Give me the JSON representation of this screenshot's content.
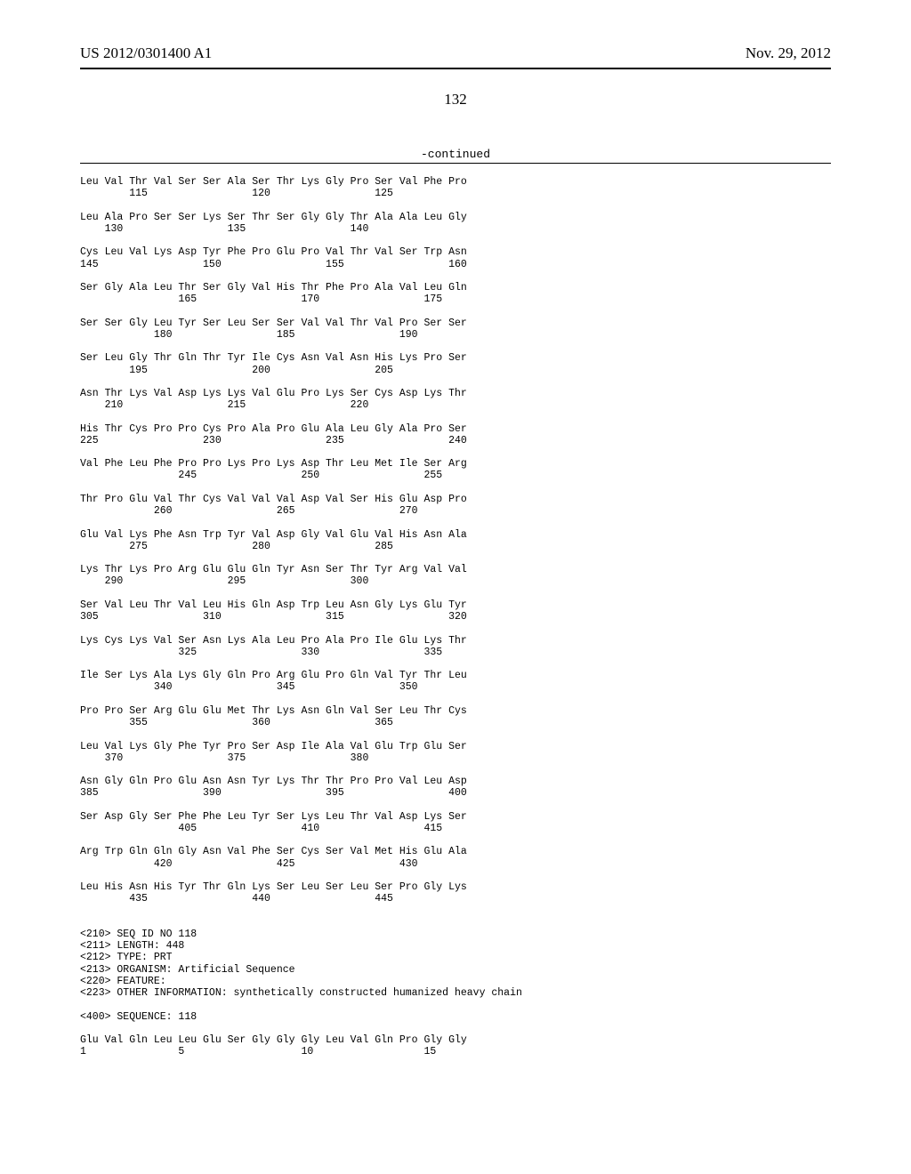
{
  "header": {
    "pub_number": "US 2012/0301400 A1",
    "pub_date": "Nov. 29, 2012"
  },
  "page_number": "132",
  "continued_label": "-continued",
  "sequence_rows": [
    {
      "line1": "Leu Val Thr Val Ser Ser Ala Ser Thr Lys Gly Pro Ser Val Phe Pro",
      "line2": "        115                 120                 125"
    },
    {
      "line1": "Leu Ala Pro Ser Ser Lys Ser Thr Ser Gly Gly Thr Ala Ala Leu Gly",
      "line2": "    130                 135                 140"
    },
    {
      "line1": "Cys Leu Val Lys Asp Tyr Phe Pro Glu Pro Val Thr Val Ser Trp Asn",
      "line2": "145                 150                 155                 160"
    },
    {
      "line1": "Ser Gly Ala Leu Thr Ser Gly Val His Thr Phe Pro Ala Val Leu Gln",
      "line2": "                165                 170                 175"
    },
    {
      "line1": "Ser Ser Gly Leu Tyr Ser Leu Ser Ser Val Val Thr Val Pro Ser Ser",
      "line2": "            180                 185                 190"
    },
    {
      "line1": "Ser Leu Gly Thr Gln Thr Tyr Ile Cys Asn Val Asn His Lys Pro Ser",
      "line2": "        195                 200                 205"
    },
    {
      "line1": "Asn Thr Lys Val Asp Lys Lys Val Glu Pro Lys Ser Cys Asp Lys Thr",
      "line2": "    210                 215                 220"
    },
    {
      "line1": "His Thr Cys Pro Pro Cys Pro Ala Pro Glu Ala Leu Gly Ala Pro Ser",
      "line2": "225                 230                 235                 240"
    },
    {
      "line1": "Val Phe Leu Phe Pro Pro Lys Pro Lys Asp Thr Leu Met Ile Ser Arg",
      "line2": "                245                 250                 255"
    },
    {
      "line1": "Thr Pro Glu Val Thr Cys Val Val Val Asp Val Ser His Glu Asp Pro",
      "line2": "            260                 265                 270"
    },
    {
      "line1": "Glu Val Lys Phe Asn Trp Tyr Val Asp Gly Val Glu Val His Asn Ala",
      "line2": "        275                 280                 285"
    },
    {
      "line1": "Lys Thr Lys Pro Arg Glu Glu Gln Tyr Asn Ser Thr Tyr Arg Val Val",
      "line2": "    290                 295                 300"
    },
    {
      "line1": "Ser Val Leu Thr Val Leu His Gln Asp Trp Leu Asn Gly Lys Glu Tyr",
      "line2": "305                 310                 315                 320"
    },
    {
      "line1": "Lys Cys Lys Val Ser Asn Lys Ala Leu Pro Ala Pro Ile Glu Lys Thr",
      "line2": "                325                 330                 335"
    },
    {
      "line1": "Ile Ser Lys Ala Lys Gly Gln Pro Arg Glu Pro Gln Val Tyr Thr Leu",
      "line2": "            340                 345                 350"
    },
    {
      "line1": "Pro Pro Ser Arg Glu Glu Met Thr Lys Asn Gln Val Ser Leu Thr Cys",
      "line2": "        355                 360                 365"
    },
    {
      "line1": "Leu Val Lys Gly Phe Tyr Pro Ser Asp Ile Ala Val Glu Trp Glu Ser",
      "line2": "    370                 375                 380"
    },
    {
      "line1": "Asn Gly Gln Pro Glu Asn Asn Tyr Lys Thr Thr Pro Pro Val Leu Asp",
      "line2": "385                 390                 395                 400"
    },
    {
      "line1": "Ser Asp Gly Ser Phe Phe Leu Tyr Ser Lys Leu Thr Val Asp Lys Ser",
      "line2": "                405                 410                 415"
    },
    {
      "line1": "Arg Trp Gln Gln Gly Asn Val Phe Ser Cys Ser Val Met His Glu Ala",
      "line2": "            420                 425                 430"
    },
    {
      "line1": "Leu His Asn His Tyr Thr Gln Lys Ser Leu Ser Leu Ser Pro Gly Lys",
      "line2": "        435                 440                 445"
    }
  ],
  "metadata_lines": [
    "<210> SEQ ID NO 118",
    "<211> LENGTH: 448",
    "<212> TYPE: PRT",
    "<213> ORGANISM: Artificial Sequence",
    "<220> FEATURE:",
    "<223> OTHER INFORMATION: synthetically constructed humanized heavy chain"
  ],
  "sequence_header": "<400> SEQUENCE: 118",
  "tail_rows": [
    {
      "line1": "Glu Val Gln Leu Leu Glu Ser Gly Gly Gly Leu Val Gln Pro Gly Gly",
      "line2": "1               5                   10                  15"
    }
  ],
  "style": {
    "background_color": "#ffffff",
    "text_color": "#000000",
    "mono_font": "Courier New",
    "body_font": "Times New Roman",
    "header_fontsize": 17,
    "seq_fontsize": 11.5
  }
}
